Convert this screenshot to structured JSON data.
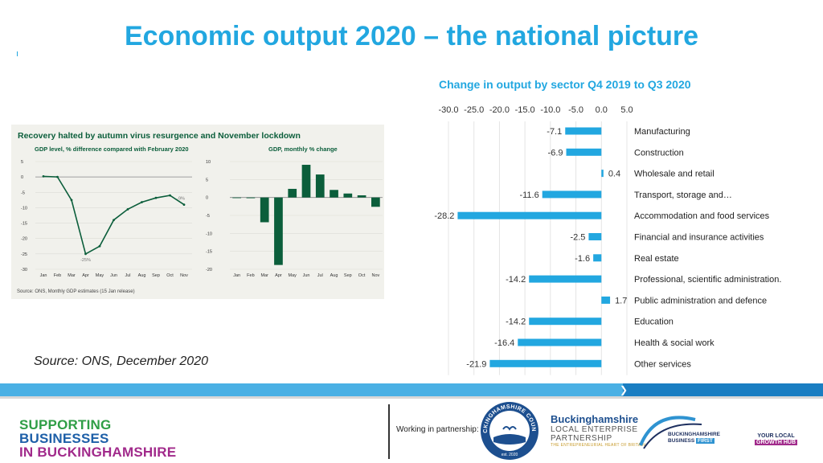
{
  "page": {
    "title": "Economic output 2020 – the national picture",
    "source_note": "Source: ONS, December 2020"
  },
  "chart_data": [
    {
      "type": "bar",
      "orientation": "horizontal",
      "title": "Change in output by sector Q4 2019 to Q3 2020",
      "categories": [
        "Manufacturing",
        "Construction",
        "Wholesale and retail",
        "Transport, storage and…",
        "Accommodation and food services",
        "Financial and insurance activities",
        "Real estate",
        "Professional, scientific administration.",
        "Public administration and defence",
        "Education",
        "Health & social work",
        "Other services"
      ],
      "values": [
        -7.1,
        -6.9,
        0.4,
        -11.6,
        -28.2,
        -2.5,
        -1.6,
        -14.2,
        1.7,
        -14.2,
        -16.4,
        -21.9
      ],
      "value_labels": [
        "-7.1",
        "-6.9",
        "0.4",
        "-11.6",
        "-28.2",
        "-2.5",
        "-1.6",
        "-14.2",
        "1.7",
        "-14.2",
        "-16.4",
        "-21.9"
      ],
      "xlim": [
        -30,
        5
      ],
      "xticks": [
        -30,
        -25,
        -20,
        -15,
        -10,
        -5,
        0,
        5
      ],
      "xtick_labels": [
        "-30.0",
        "-25.0",
        "-20.0",
        "-15.0",
        "-10.0",
        "-5.0",
        "0.0",
        "5.0"
      ],
      "color": "#22a7e0",
      "grid": true,
      "legend": "none"
    },
    {
      "type": "line",
      "title": "Recovery halted by autumn virus resurgence and November lockdown",
      "subtitle": "GDP level, % difference compared with February 2020",
      "categories": [
        "Jan",
        "Feb",
        "Mar",
        "Apr",
        "May",
        "Jun",
        "Jul",
        "Aug",
        "Sep",
        "Oct",
        "Nov"
      ],
      "values": [
        0.2,
        0,
        -7.5,
        -25,
        -22.5,
        -14,
        -10.5,
        -8.2,
        -6.8,
        -6,
        -9
      ],
      "annotations": [
        "-25%",
        "-9%"
      ],
      "ylim": [
        -30,
        5
      ],
      "yticks": [
        5,
        0,
        -5,
        -10,
        -15,
        -20,
        -25,
        -30
      ],
      "color": "#0b5e3b"
    },
    {
      "type": "bar",
      "title": "GDP, monthly % change",
      "categories": [
        "Jan",
        "Feb",
        "Mar",
        "Apr",
        "May",
        "Jun",
        "Jul",
        "Aug",
        "Sep",
        "Oct",
        "Nov"
      ],
      "values": [
        0,
        -0.2,
        -6.9,
        -18.8,
        2.4,
        9.1,
        6.4,
        2.1,
        1.1,
        0.6,
        -2.6
      ],
      "ylim": [
        -20,
        10
      ],
      "yticks": [
        10,
        5,
        0,
        -5,
        -10,
        -15,
        -20
      ],
      "color": "#0b5e3b",
      "source": "Source: ONS, Monthly GDP estimates (15 Jan release)"
    }
  ],
  "footer": {
    "supporting_line1": "SUPPORTING",
    "supporting_line2": "BUSINESSES",
    "supporting_line3": "IN BUCKINGHAMSHIRE",
    "partnership": "Working in partnership:",
    "council_name": "BUCKINGHAMSHIRE COUNCIL",
    "council_est": "est. 2020",
    "lep_name": "Buckinghamshire",
    "lep_line1": "LOCAL ENTERPRISE",
    "lep_line2": "PARTNERSHIP",
    "lep_tagline": "THE ENTREPRENEURIAL HEART OF BRITAIN",
    "bbf_line1": "BUCKINGHAMSHIRE",
    "bbf_line2": "BUSINESS",
    "bbf_first": "FIRST",
    "growth_line1": "YOUR LOCAL",
    "growth_line2": "GROWTH HUB"
  },
  "colors": {
    "title": "#22a7e0",
    "bar": "#22a7e0",
    "inset_green": "#0b5e3b",
    "band_light": "#4ab0e4",
    "band_dark": "#1a7ec2",
    "supporting_green": "#2f9e46",
    "supporting_blue": "#1d5fa8",
    "supporting_purple": "#a12a8b"
  }
}
